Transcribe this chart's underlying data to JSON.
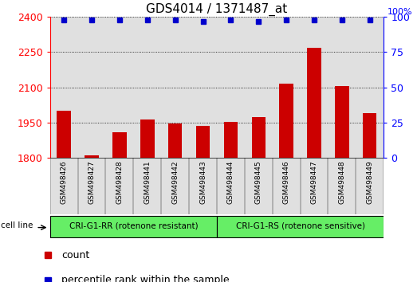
{
  "title": "GDS4014 / 1371487_at",
  "samples": [
    "GSM498426",
    "GSM498427",
    "GSM498428",
    "GSM498441",
    "GSM498442",
    "GSM498443",
    "GSM498444",
    "GSM498445",
    "GSM498446",
    "GSM498447",
    "GSM498448",
    "GSM498449"
  ],
  "counts": [
    2000,
    1810,
    1910,
    1965,
    1945,
    1935,
    1955,
    1975,
    2115,
    2270,
    2105,
    1990
  ],
  "percentile_ranks": [
    98,
    98,
    98,
    98,
    98,
    97,
    98,
    97,
    98,
    98,
    98,
    98
  ],
  "group1_label": "CRI-G1-RR (rotenone resistant)",
  "group2_label": "CRI-G1-RS (rotenone sensitive)",
  "group1_count": 6,
  "group2_count": 6,
  "cell_line_label": "cell line",
  "bar_color": "#cc0000",
  "dot_color": "#0000cc",
  "ylim_left": [
    1800,
    2400
  ],
  "yticks_left": [
    1800,
    1950,
    2100,
    2250,
    2400
  ],
  "ylim_right": [
    0,
    100
  ],
  "yticks_right": [
    0,
    25,
    50,
    75,
    100
  ],
  "grid_color": "#000000",
  "bg_color": "#ffffff",
  "bar_bg_color": "#cccccc",
  "group_bg_color": "#66ee66",
  "title_fontsize": 11,
  "tick_fontsize": 9,
  "label_fontsize": 8,
  "legend_fontsize": 9
}
